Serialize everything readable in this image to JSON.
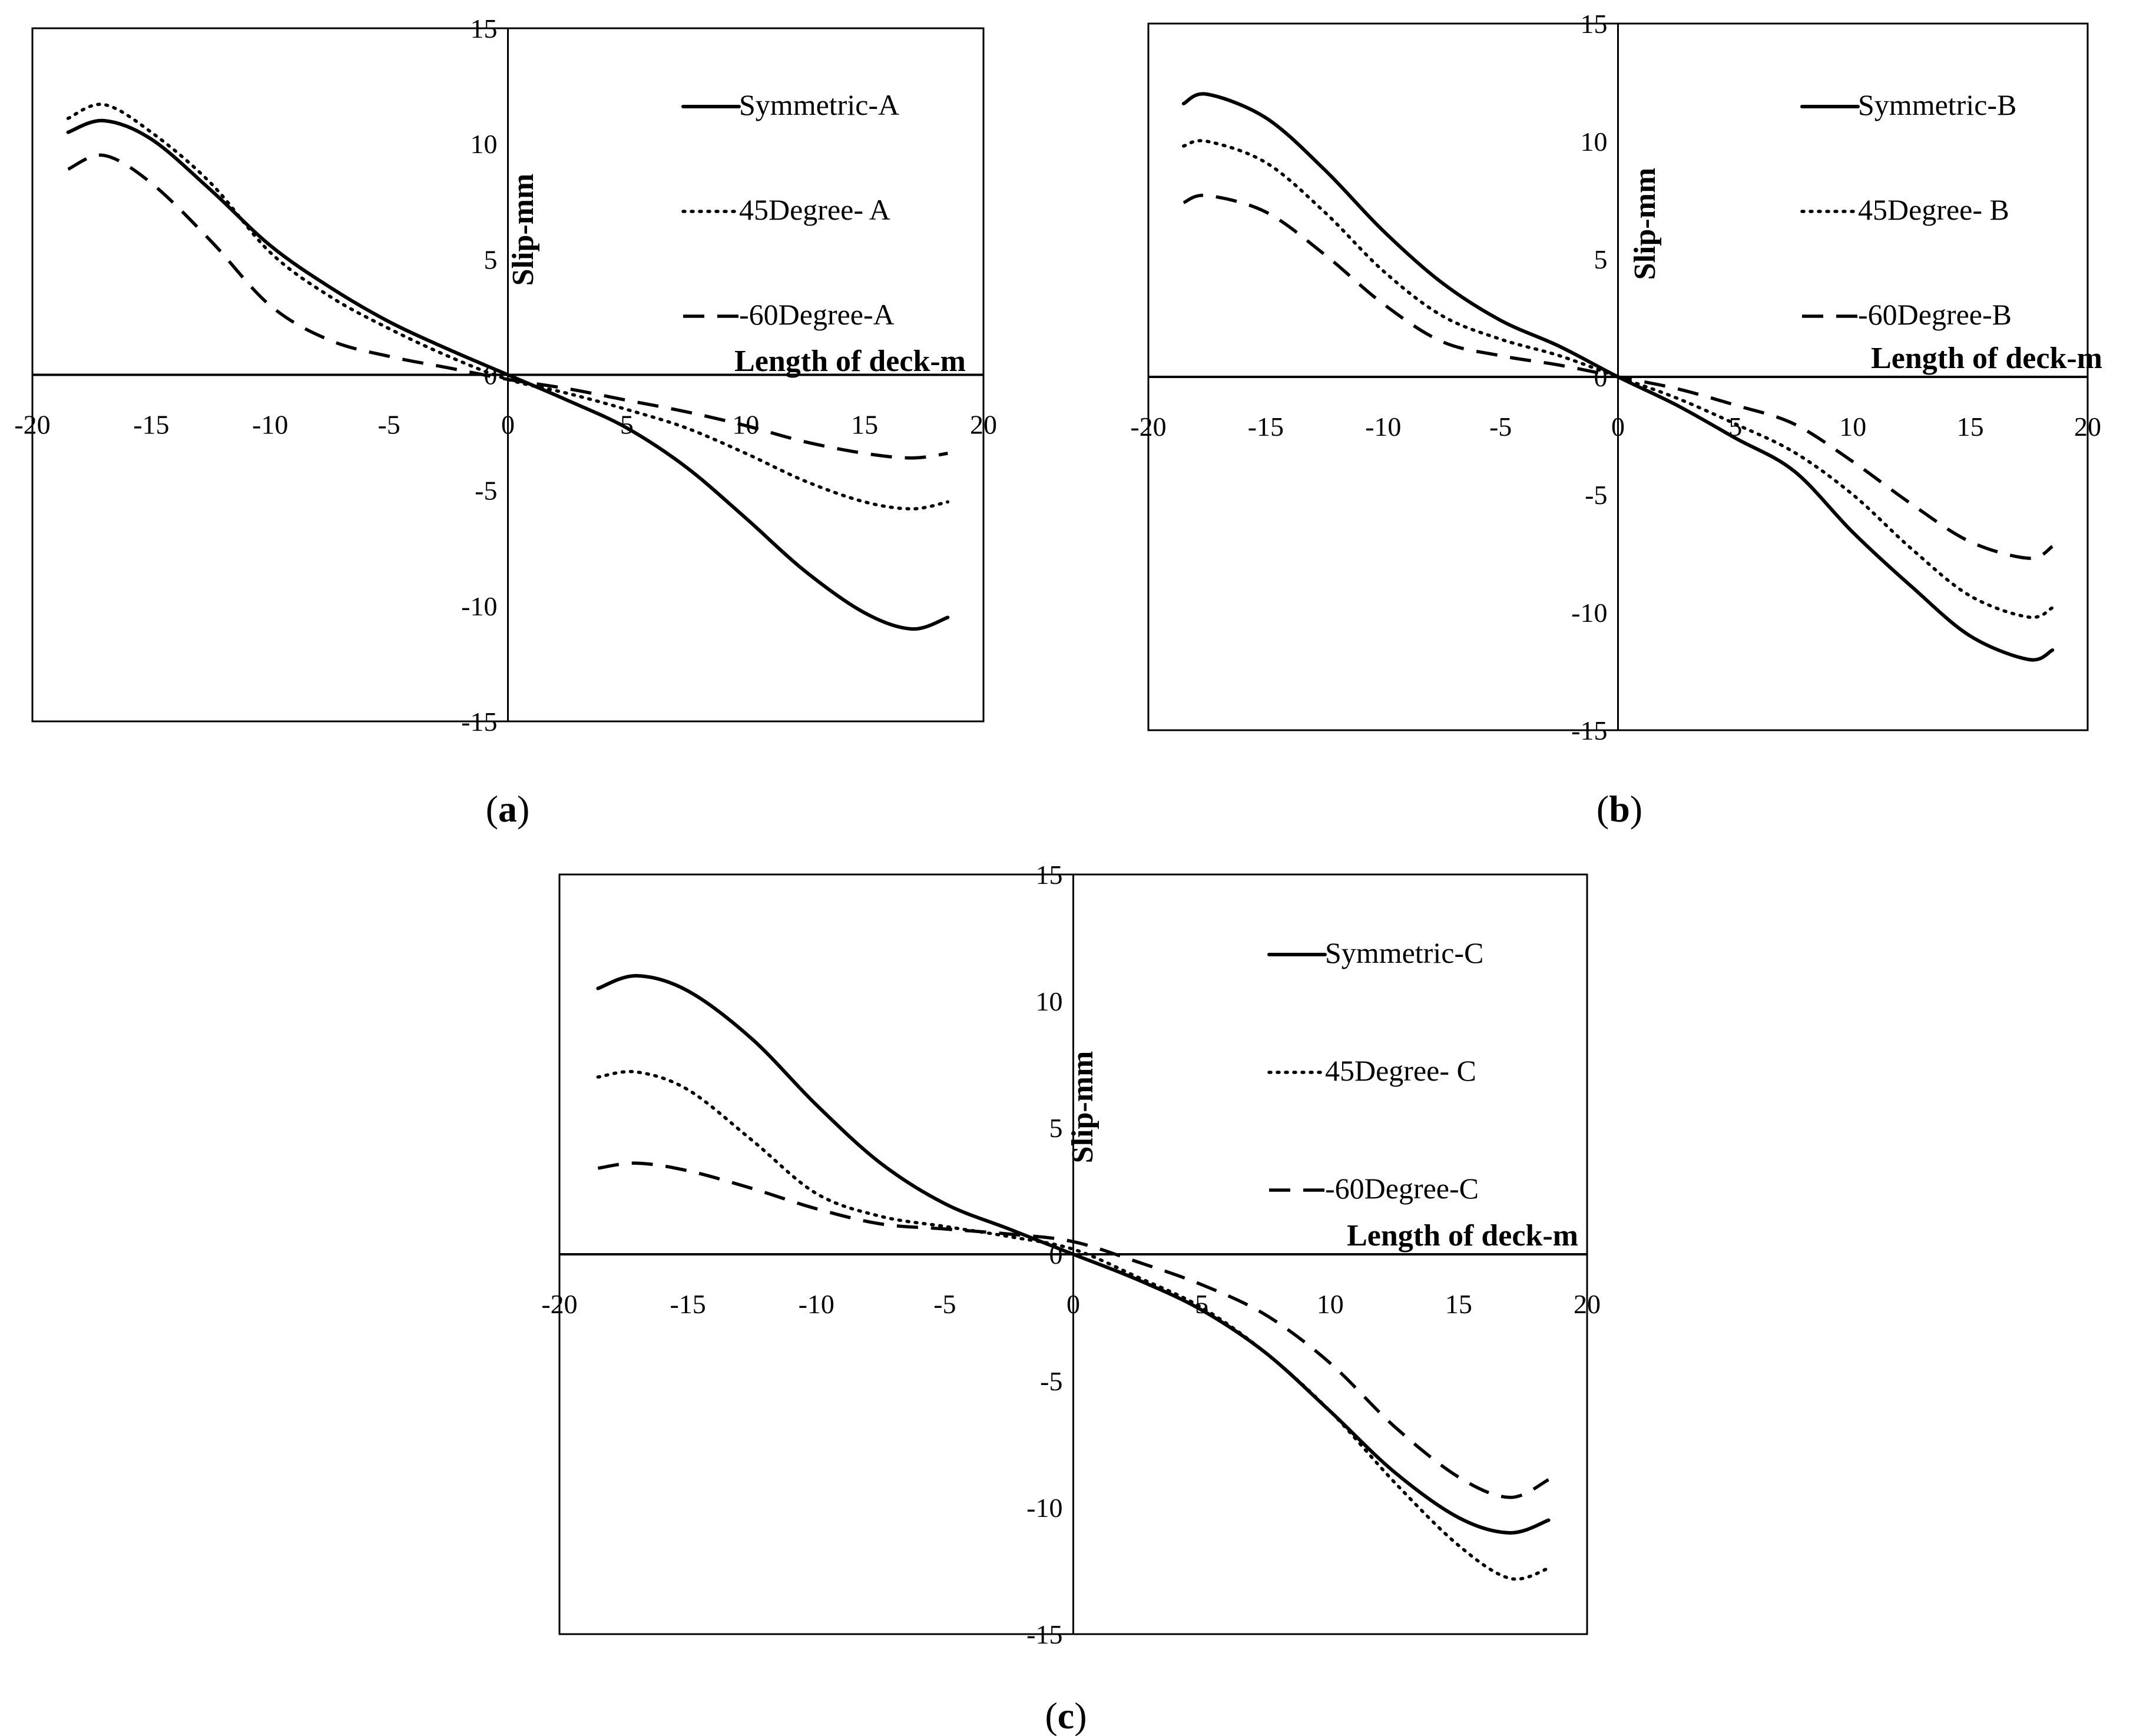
{
  "chart_data": [
    {
      "type": "line",
      "panel": "a",
      "xlabel": "Length of deck-m",
      "ylabel": "Slip-mm",
      "xlim": [
        -20,
        20
      ],
      "ylim": [
        -15,
        15
      ],
      "xticks": [
        "-20",
        "-15",
        "-10",
        "-5",
        "0",
        "5",
        "10",
        "15",
        "20"
      ],
      "yticks": [
        "15",
        "10",
        "5",
        "0",
        "-5",
        "-10",
        "-15"
      ],
      "legend_position": "top-right",
      "x": [
        -18.5,
        -17,
        -15,
        -12.5,
        -10,
        -7.5,
        -5,
        -2.5,
        0,
        2.5,
        5,
        7.5,
        10,
        12.5,
        15,
        17,
        18.5
      ],
      "series": [
        {
          "name": "Symmetric-A",
          "style": "solid",
          "values": [
            10.5,
            11.0,
            10.2,
            8.0,
            5.6,
            3.8,
            2.3,
            1.1,
            0,
            -1.1,
            -2.3,
            -4.0,
            -6.2,
            -8.5,
            -10.3,
            -11.0,
            -10.5
          ]
        },
        {
          "name": "45Degree- A",
          "style": "dotted",
          "values": [
            11.1,
            11.7,
            10.5,
            8.3,
            5.3,
            3.4,
            2.0,
            0.8,
            -0.2,
            -0.8,
            -1.5,
            -2.3,
            -3.4,
            -4.6,
            -5.5,
            -5.8,
            -5.5
          ]
        },
        {
          "name": "-60Degree-A",
          "style": "dashed",
          "values": [
            8.9,
            9.5,
            8.3,
            5.8,
            3.0,
            1.5,
            0.8,
            0.3,
            -0.2,
            -0.6,
            -1.1,
            -1.6,
            -2.2,
            -2.9,
            -3.4,
            -3.6,
            -3.4
          ]
        }
      ]
    },
    {
      "type": "line",
      "panel": "b",
      "xlabel": "Length of deck-m",
      "ylabel": "Slip-mm",
      "xlim": [
        -20,
        20
      ],
      "ylim": [
        -15,
        15
      ],
      "xticks": [
        "-20",
        "-15",
        "-10",
        "-5",
        "0",
        "5",
        "10",
        "15",
        "20"
      ],
      "yticks": [
        "15",
        "10",
        "5",
        "0",
        "-5",
        "-10",
        "-15"
      ],
      "legend_position": "top-right",
      "x": [
        -18.5,
        -17.5,
        -15,
        -12.5,
        -10,
        -7.5,
        -5,
        -2.5,
        0,
        2.5,
        5,
        7.5,
        10,
        12.5,
        15,
        17.5,
        18.5
      ],
      "series": [
        {
          "name": "Symmetric-B",
          "style": "solid",
          "values": [
            11.6,
            12.0,
            11.0,
            8.8,
            6.2,
            4.0,
            2.4,
            1.3,
            0,
            -1.2,
            -2.6,
            -4.0,
            -6.6,
            -8.9,
            -11.0,
            -12.0,
            -11.6
          ]
        },
        {
          "name": "45Degree- B",
          "style": "dotted",
          "values": [
            9.8,
            10.0,
            9.1,
            7.0,
            4.5,
            2.6,
            1.6,
            0.9,
            0,
            -0.9,
            -2.0,
            -3.2,
            -5.0,
            -7.3,
            -9.3,
            -10.2,
            -9.8
          ]
        },
        {
          "name": "-60Degree-B",
          "style": "dashed",
          "values": [
            7.4,
            7.7,
            7.0,
            5.2,
            3.1,
            1.5,
            0.9,
            0.5,
            0,
            -0.5,
            -1.2,
            -2.0,
            -3.6,
            -5.4,
            -7.0,
            -7.7,
            -7.2
          ]
        }
      ]
    },
    {
      "type": "line",
      "panel": "c",
      "xlabel": "Length of deck-m",
      "ylabel": "Slip-mm",
      "xlim": [
        -20,
        20
      ],
      "ylim": [
        -15,
        15
      ],
      "xticks": [
        "-20",
        "-15",
        "-10",
        "-5",
        "0",
        "5",
        "10",
        "15",
        "20"
      ],
      "yticks": [
        "15",
        "10",
        "5",
        "0",
        "-5",
        "-10",
        "-15"
      ],
      "legend_position": "top-right",
      "x": [
        -18.5,
        -17,
        -15,
        -12.5,
        -10,
        -7.5,
        -5,
        -2.5,
        0,
        2.5,
        5,
        7.5,
        10,
        12.5,
        15,
        17,
        18.5
      ],
      "series": [
        {
          "name": "Symmetric-C",
          "style": "solid",
          "values": [
            10.5,
            11.0,
            10.4,
            8.5,
            5.9,
            3.6,
            2.0,
            1.0,
            0,
            -1.0,
            -2.2,
            -3.9,
            -6.2,
            -8.6,
            -10.4,
            -11.0,
            -10.5
          ]
        },
        {
          "name": "45Degree- C",
          "style": "dotted",
          "values": [
            7.0,
            7.2,
            6.5,
            4.5,
            2.4,
            1.5,
            1.1,
            0.7,
            0.2,
            -0.9,
            -2.1,
            -3.9,
            -6.2,
            -9.0,
            -11.5,
            -12.8,
            -12.4
          ]
        },
        {
          "name": "-60Degree-C",
          "style": "dashed",
          "values": [
            3.4,
            3.6,
            3.3,
            2.6,
            1.8,
            1.2,
            1.0,
            0.8,
            0.5,
            -0.3,
            -1.2,
            -2.4,
            -4.3,
            -6.8,
            -8.8,
            -9.6,
            -8.9
          ]
        }
      ]
    }
  ],
  "panel_labels": [
    "(a)",
    "(b)",
    "(c)"
  ]
}
